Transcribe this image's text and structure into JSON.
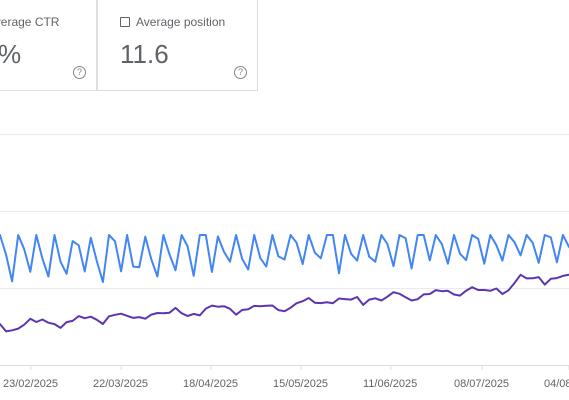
{
  "metrics": {
    "ctr": {
      "label": "Average CTR",
      "value": "%",
      "help_icon": "help-circle-icon"
    },
    "position": {
      "label": "Average position",
      "value": "11.6",
      "help_icon": "help-circle-icon"
    }
  },
  "chart_data": {
    "type": "line",
    "x_tick_labels": [
      "23/02/2025",
      "22/03/2025",
      "18/04/2025",
      "15/05/2025",
      "11/06/2025",
      "08/07/2025",
      "04/08"
    ],
    "gridlines": true,
    "colors": {
      "series_a": "#4285f4",
      "series_b": "#5e35b1",
      "gridline": "#e8eaed",
      "axis": "#dadce0"
    }
  }
}
